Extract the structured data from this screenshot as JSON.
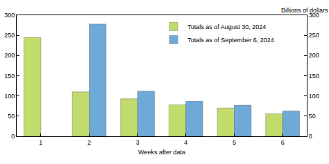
{
  "chart_data": {
    "type": "bar",
    "x_label": "Weeks after data",
    "y_label": "Billions of dollars",
    "categories": [
      "1",
      "2",
      "3",
      "4",
      "5",
      "6"
    ],
    "series": [
      {
        "name": "Totals as of August 30, 2024",
        "color": "#c2dc6c",
        "values": [
          245,
          110,
          93,
          78,
          70,
          56
        ]
      },
      {
        "name": "Totals as of September 6, 2024",
        "color": "#6fa9d8",
        "values": [
          null,
          278,
          112,
          87,
          77,
          63
        ]
      }
    ],
    "ylim": [
      0,
      300
    ],
    "yticks": [
      0,
      50,
      100,
      150,
      200,
      250,
      300
    ],
    "grid": false,
    "legend": "upper right"
  }
}
